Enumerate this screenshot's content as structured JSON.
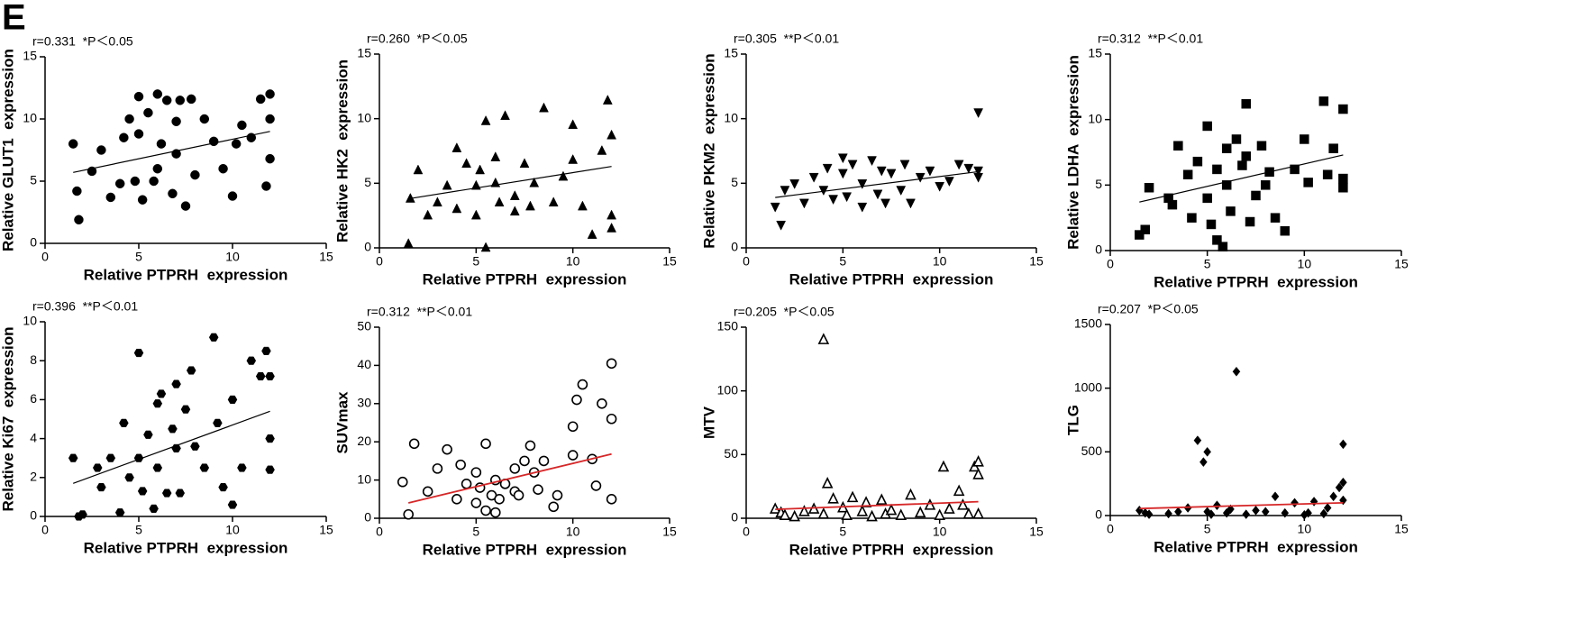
{
  "panel_label": "E",
  "chart_data": [
    {
      "type": "scatter",
      "annotation": "r=0.331  *P＜0.05",
      "xlabel": "Relative PTPRH  expression",
      "ylabel": "Relative GLUT1  expression",
      "xlim": [
        0,
        15
      ],
      "xticks": [
        0,
        5,
        10,
        15
      ],
      "ylim": [
        0,
        15
      ],
      "yticks": [
        0,
        5,
        10,
        15
      ],
      "marker": "circle",
      "filled": true,
      "color": "#000000",
      "x": [
        1.5,
        1.7,
        1.8,
        2.5,
        3,
        3.5,
        4,
        4.2,
        4.5,
        4.8,
        5,
        5,
        5.2,
        5.5,
        5.8,
        6,
        6,
        6.2,
        6.5,
        6.8,
        7,
        7,
        7.2,
        7.5,
        7.8,
        8,
        8.5,
        9,
        9.5,
        10,
        10.2,
        10.5,
        11,
        11.5,
        11.8,
        12,
        12,
        12
      ],
      "y": [
        8,
        4.2,
        1.9,
        5.8,
        7.5,
        3.7,
        4.8,
        8.5,
        10,
        5,
        11.8,
        8.8,
        3.5,
        10.5,
        5,
        12,
        6,
        8,
        11.5,
        4,
        9.8,
        7.2,
        11.5,
        3,
        11.6,
        5.5,
        10,
        8.2,
        6,
        3.8,
        8,
        9.5,
        8.5,
        11.6,
        4.6,
        12,
        10,
        6.8
      ],
      "trend": {
        "x": [
          1.5,
          12
        ],
        "y": [
          5.7,
          9.0
        ],
        "color": "#000000"
      }
    },
    {
      "type": "scatter",
      "annotation": "r=0.260  *P＜0.05",
      "xlabel": "Relative PTPRH  expression",
      "ylabel": "Relative HK2  expression",
      "xlim": [
        0,
        15
      ],
      "xticks": [
        0,
        5,
        10,
        15
      ],
      "ylim": [
        0,
        15
      ],
      "yticks": [
        0,
        5,
        10,
        15
      ],
      "marker": "triangle-up",
      "filled": true,
      "color": "#000000",
      "x": [
        1.5,
        1.6,
        2,
        2.5,
        3,
        3.5,
        4,
        4,
        4.5,
        5,
        5,
        5.2,
        5.5,
        5.5,
        6,
        6,
        6.2,
        6.5,
        7,
        7,
        7.5,
        7.8,
        8,
        8.5,
        9,
        9.5,
        10,
        10,
        10.5,
        11,
        11.5,
        11.8,
        12,
        12,
        12
      ],
      "y": [
        0.3,
        3.8,
        6,
        2.5,
        3.5,
        4.8,
        7.7,
        3,
        6.5,
        2.5,
        4.8,
        6,
        9.8,
        0,
        5,
        7,
        3.5,
        10.2,
        4,
        2.8,
        6.5,
        3.2,
        5,
        10.8,
        3.5,
        5.5,
        6.8,
        9.5,
        3.2,
        1,
        7.5,
        11.4,
        8.7,
        2.5,
        1.5
      ],
      "trend": {
        "x": [
          1.5,
          12
        ],
        "y": [
          3.8,
          6.3
        ],
        "color": "#000000"
      }
    },
    {
      "type": "scatter",
      "annotation": "r=0.305  **P＜0.01",
      "xlabel": "Relative PTPRH  expression",
      "ylabel": "Relative PKM2  expression",
      "xlim": [
        0,
        15
      ],
      "xticks": [
        0,
        5,
        10,
        15
      ],
      "ylim": [
        0,
        15
      ],
      "yticks": [
        0,
        5,
        10,
        15
      ],
      "marker": "triangle-down",
      "filled": true,
      "color": "#000000",
      "x": [
        1.5,
        1.8,
        2,
        2.5,
        3,
        3.5,
        4,
        4.2,
        4.5,
        5,
        5,
        5.2,
        5.5,
        6,
        6,
        6.5,
        6.8,
        7,
        7.2,
        7.5,
        8,
        8.2,
        8.5,
        9,
        9.5,
        10,
        10.5,
        11,
        11.5,
        12,
        12,
        12
      ],
      "y": [
        3.2,
        1.8,
        4.5,
        5,
        3.5,
        5.5,
        4.5,
        6.2,
        3.8,
        5.8,
        7,
        4,
        6.5,
        5,
        3.2,
        6.8,
        4.2,
        6,
        3.5,
        5.8,
        4.5,
        6.5,
        3.5,
        5.5,
        6,
        4.8,
        5.2,
        6.5,
        6.2,
        10.5,
        6,
        5.5
      ],
      "trend": {
        "x": [
          1.5,
          12
        ],
        "y": [
          3.9,
          5.9
        ],
        "color": "#000000"
      }
    },
    {
      "type": "scatter",
      "annotation": "r=0.312  **P＜0.01",
      "xlabel": "Relative PTPRH  expression",
      "ylabel": "Relative LDHA  expression",
      "xlim": [
        0,
        15
      ],
      "xticks": [
        0,
        5,
        10,
        15
      ],
      "ylim": [
        0,
        15
      ],
      "yticks": [
        0,
        5,
        10,
        15
      ],
      "marker": "square",
      "filled": true,
      "color": "#000000",
      "x": [
        1.5,
        1.8,
        2,
        3,
        3.2,
        3.5,
        4,
        4.2,
        4.5,
        5,
        5,
        5.2,
        5.5,
        5.5,
        5.8,
        6,
        6,
        6.2,
        6.5,
        6.8,
        7,
        7,
        7.2,
        7.5,
        7.8,
        8,
        8.2,
        8.5,
        9,
        9.5,
        10,
        10.2,
        11,
        11.2,
        11.5,
        12,
        12,
        12
      ],
      "y": [
        1.2,
        1.6,
        4.8,
        4,
        3.5,
        8,
        5.8,
        2.5,
        6.8,
        4,
        9.5,
        2,
        0.8,
        6.2,
        0.3,
        5,
        7.8,
        3,
        8.5,
        6.5,
        11.2,
        7.2,
        2.2,
        4.2,
        8,
        5,
        6,
        2.5,
        1.5,
        6.2,
        8.5,
        5.2,
        11.4,
        5.8,
        7.8,
        10.8,
        5.5,
        4.8
      ],
      "trend": {
        "x": [
          1.5,
          12
        ],
        "y": [
          3.7,
          7.3
        ],
        "color": "#000000"
      }
    },
    {
      "type": "scatter",
      "annotation": "r=0.396  **P＜0.01",
      "xlabel": "Relative PTPRH  expression",
      "ylabel": "Relative Ki67  expression",
      "xlim": [
        0,
        15
      ],
      "xticks": [
        0,
        5,
        10,
        15
      ],
      "ylim": [
        0,
        10
      ],
      "yticks": [
        0,
        2,
        4,
        6,
        8,
        10
      ],
      "marker": "hexagon",
      "filled": true,
      "color": "#000000",
      "x": [
        1.5,
        1.8,
        2,
        2.8,
        3,
        3.5,
        4,
        4.2,
        4.5,
        5,
        5,
        5.2,
        5.5,
        5.8,
        6,
        6,
        6.2,
        6.5,
        6.8,
        7,
        7,
        7.2,
        7.5,
        7.8,
        8,
        8.5,
        9,
        9.2,
        9.5,
        10,
        10,
        10.5,
        11,
        11.5,
        11.8,
        12,
        12,
        12
      ],
      "y": [
        3,
        0,
        0.1,
        2.5,
        1.5,
        3,
        0.2,
        4.8,
        2,
        8.4,
        3,
        1.3,
        4.2,
        0.4,
        5.8,
        2.5,
        6.3,
        1.2,
        4.5,
        3.5,
        6.8,
        1.2,
        5.5,
        7.5,
        3.6,
        2.5,
        9.2,
        4.8,
        1.5,
        0.6,
        6,
        2.5,
        8,
        7.2,
        8.5,
        4,
        2.4,
        7.2
      ],
      "trend": {
        "x": [
          1.5,
          12
        ],
        "y": [
          1.7,
          5.4
        ],
        "color": "#000000"
      }
    },
    {
      "type": "scatter",
      "annotation": "r=0.312  **P＜0.01",
      "xlabel": "Relative PTPRH  expression",
      "ylabel": "SUVmax",
      "xlim": [
        0,
        15
      ],
      "xticks": [
        0,
        5,
        10,
        15
      ],
      "ylim": [
        0,
        50
      ],
      "yticks": [
        0,
        10,
        20,
        30,
        40,
        50
      ],
      "marker": "circle",
      "filled": false,
      "color": "#000000",
      "x": [
        1.2,
        1.5,
        1.8,
        2.5,
        3,
        3.5,
        4,
        4.2,
        4.5,
        5,
        5,
        5.2,
        5.5,
        5.5,
        5.8,
        6,
        6,
        6.2,
        6.5,
        7,
        7,
        7.2,
        7.5,
        7.8,
        8,
        8.2,
        8.5,
        9,
        9.2,
        10,
        10,
        10.2,
        10.5,
        11,
        11.2,
        11.5,
        12,
        12,
        12
      ],
      "y": [
        9.5,
        1,
        19.5,
        7,
        13,
        18,
        5,
        14,
        9,
        12,
        4,
        8,
        19.5,
        2,
        6,
        10,
        1.5,
        5,
        9,
        7,
        13,
        6,
        15,
        19,
        12,
        7.5,
        15,
        3,
        6,
        24,
        16.5,
        31,
        35,
        15.5,
        8.5,
        30,
        40.5,
        26,
        5
      ],
      "trend": {
        "x": [
          1.5,
          12
        ],
        "y": [
          4,
          16.8
        ],
        "color": "#d62728"
      }
    },
    {
      "type": "scatter",
      "annotation": "r=0.205  *P＜0.05",
      "xlabel": "Relative PTPRH  expression",
      "ylabel": "MTV",
      "xlim": [
        0,
        15
      ],
      "xticks": [
        0,
        5,
        10,
        15
      ],
      "ylim": [
        0,
        150
      ],
      "yticks": [
        0,
        50,
        100,
        150
      ],
      "marker": "triangle-up",
      "filled": false,
      "color": "#000000",
      "x": [
        1.5,
        1.8,
        2,
        2.5,
        3,
        3.5,
        4,
        4,
        4.2,
        4.5,
        5,
        5.2,
        5.5,
        6,
        6.2,
        6.5,
        7,
        7.2,
        7.5,
        8,
        8.5,
        9,
        9.5,
        10,
        10.2,
        10.5,
        11,
        11.2,
        11.5,
        11.8,
        12,
        12,
        12
      ],
      "y": [
        7,
        4,
        2,
        1,
        5,
        7,
        140,
        3,
        27,
        15,
        8,
        2,
        16,
        5,
        12,
        1,
        14,
        3,
        6,
        2,
        18,
        4,
        10,
        2,
        40,
        7,
        21,
        10,
        3,
        40,
        44,
        34,
        3
      ],
      "trend": {
        "x": [
          1.5,
          12
        ],
        "y": [
          7,
          13
        ],
        "color": "#d62728"
      }
    },
    {
      "type": "scatter",
      "annotation": "r=0.207  *P＜0.05",
      "xlabel": "Relative PTPRH  expression",
      "ylabel": "TLG",
      "xlim": [
        0,
        15
      ],
      "xticks": [
        0,
        5,
        10,
        15
      ],
      "ylim": [
        0,
        1500
      ],
      "yticks": [
        0,
        500,
        1000,
        1500
      ],
      "marker": "diamond",
      "filled": true,
      "color": "#000000",
      "x": [
        1.5,
        1.8,
        2,
        3,
        3.5,
        4,
        4.5,
        4.8,
        5,
        5,
        5.2,
        5.5,
        6,
        6.2,
        6.5,
        7,
        7.5,
        8,
        8.5,
        9,
        9.5,
        10,
        10.2,
        10.5,
        11,
        11.2,
        11.5,
        11.8,
        12,
        12,
        12
      ],
      "y": [
        40,
        20,
        10,
        15,
        30,
        60,
        590,
        420,
        500,
        30,
        10,
        80,
        20,
        50,
        1130,
        10,
        40,
        30,
        150,
        20,
        100,
        5,
        20,
        110,
        15,
        60,
        150,
        220,
        560,
        260,
        120
      ],
      "trend": {
        "x": [
          1.5,
          12
        ],
        "y": [
          55,
          100
        ],
        "color": "#d62728"
      }
    }
  ]
}
